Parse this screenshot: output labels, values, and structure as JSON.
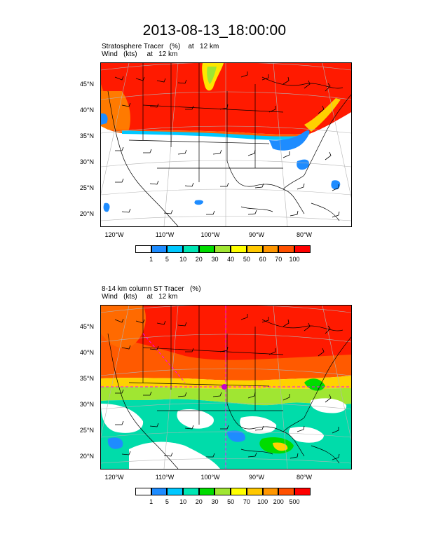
{
  "title": "2013-08-13_18:00:00",
  "panels": [
    {
      "header_line1": "Stratosphere Tracer   (%)    at   12 km",
      "header_line2": "Wind   (kts)     at   12 km",
      "lat_labels": [
        "45°N",
        "40°N",
        "35°N",
        "30°N",
        "25°N",
        "20°N"
      ],
      "lon_labels": [
        "120°W",
        "110°W",
        "100°W",
        "90°W",
        "80°W"
      ],
      "colorbar_colors": [
        "#ffffff",
        "#1e8cff",
        "#00c8ff",
        "#00e6b4",
        "#00dc00",
        "#a0e632",
        "#ffff00",
        "#ffc800",
        "#ff9600",
        "#ff5000",
        "#ff0000"
      ],
      "colorbar_labels": [
        "1",
        "5",
        "10",
        "20",
        "30",
        "40",
        "50",
        "60",
        "70",
        "100"
      ]
    },
    {
      "header_line1": "8-14 km column ST Tracer   (%)",
      "header_line2": "Wind   (kts)     at   12 km",
      "lat_labels": [
        "45°N",
        "40°N",
        "35°N",
        "30°N",
        "25°N",
        "20°N"
      ],
      "lon_labels": [
        "120°W",
        "110°W",
        "100°W",
        "90°W",
        "80°W"
      ],
      "colorbar_colors": [
        "#ffffff",
        "#1e8cff",
        "#00c8ff",
        "#00e6b4",
        "#00dc00",
        "#a0e632",
        "#ffff00",
        "#ffc800",
        "#ff9600",
        "#ff5000",
        "#ff0000"
      ],
      "colorbar_labels": [
        "1",
        "5",
        "10",
        "20",
        "30",
        "50",
        "70",
        "100",
        "200",
        "500"
      ]
    }
  ]
}
